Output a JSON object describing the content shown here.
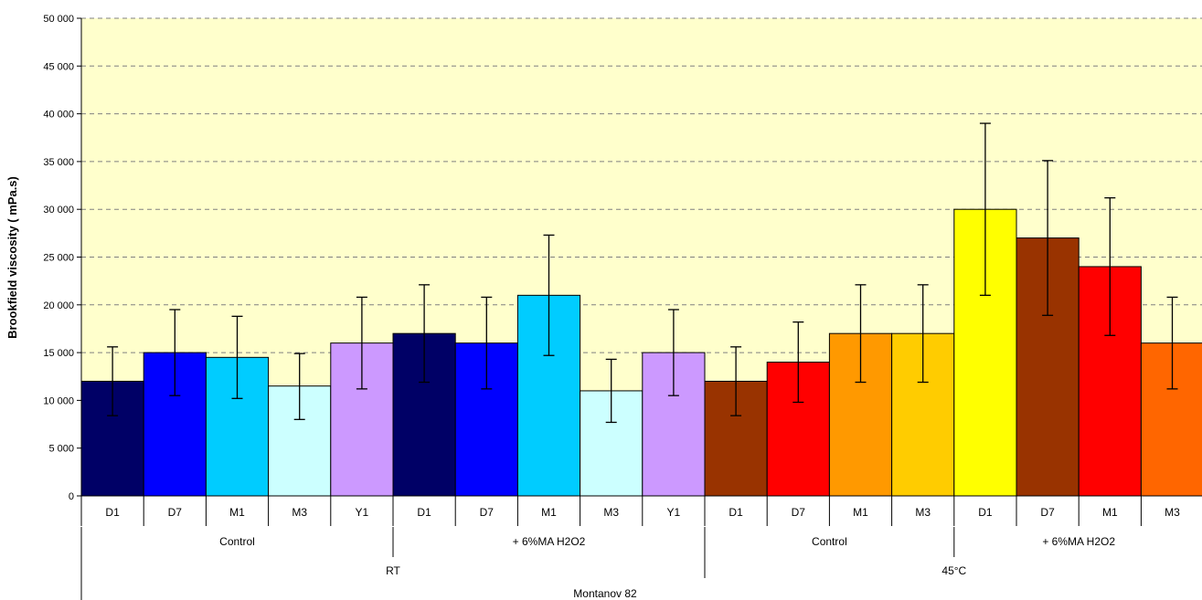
{
  "chart_data": {
    "type": "bar",
    "title": "",
    "ylabel": "Brookfield viscosity ( mPa.s)",
    "xlabel": "",
    "ylim": [
      0,
      50000
    ],
    "yticks": [
      0,
      5000,
      10000,
      15000,
      20000,
      25000,
      30000,
      35000,
      40000,
      45000,
      50000
    ],
    "ytick_labels": [
      "0",
      "5 000",
      "10 000",
      "15 000",
      "20 000",
      "25 000",
      "30 000",
      "35 000",
      "40 000",
      "45 000",
      "50 000"
    ],
    "grid": true,
    "plot_background": "#FFFFCC",
    "categories": [
      "D1",
      "D7",
      "M1",
      "M3",
      "Y1",
      "D1",
      "D7",
      "M1",
      "M3",
      "Y1",
      "D1",
      "D7",
      "M1",
      "M3",
      "D1",
      "D7",
      "M1",
      "M3"
    ],
    "values": [
      12000,
      15000,
      14500,
      11500,
      16000,
      17000,
      16000,
      21000,
      11000,
      15000,
      12000,
      14000,
      17000,
      17000,
      30000,
      27000,
      24000,
      16000
    ],
    "error_low": [
      8400,
      10500,
      10200,
      8000,
      11200,
      11900,
      11200,
      14700,
      7700,
      10500,
      8400,
      9800,
      11900,
      11900,
      21000,
      18900,
      16800,
      11200
    ],
    "error_high": [
      15600,
      19500,
      18800,
      14900,
      20800,
      22100,
      20800,
      27300,
      14300,
      19500,
      15600,
      18200,
      22100,
      22100,
      39000,
      35100,
      31200,
      20800
    ],
    "bar_colors": [
      "#000066",
      "#0000FF",
      "#00CCFF",
      "#CCFFFF",
      "#CC99FF",
      "#000066",
      "#0000FF",
      "#00CCFF",
      "#CCFFFF",
      "#CC99FF",
      "#993300",
      "#FF0000",
      "#FF9900",
      "#FFCC00",
      "#FFFF00",
      "#993300",
      "#FF0000",
      "#FF6600"
    ],
    "groups": [
      {
        "label": "Control",
        "start": 0,
        "end": 5
      },
      {
        "label": "+ 6%MA H2O2",
        "start": 5,
        "end": 10
      },
      {
        "label": "Control",
        "start": 10,
        "end": 14
      },
      {
        "label": "+ 6%MA H2O2",
        "start": 14,
        "end": 18
      }
    ],
    "supergroups": [
      {
        "label": "RT",
        "start": 0,
        "end": 10
      },
      {
        "label": "45°C",
        "start": 10,
        "end": 18
      }
    ],
    "outer_label": "Montanov 82"
  }
}
